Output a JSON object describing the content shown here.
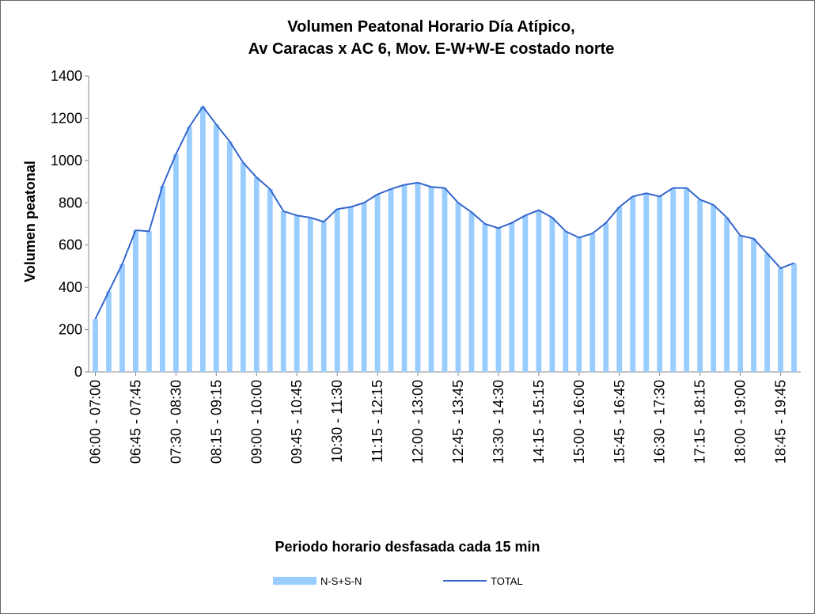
{
  "chart_data": {
    "type": "bar_line",
    "title": [
      "Volumen Peatonal Horario Día  Atípico,",
      "Av Caracas x AC 6, Mov. E-W+W-E costado norte"
    ],
    "ylabel": "Volumen peatonal",
    "xlabel": "Periodo horario desfasada cada 15 min",
    "categories": [
      "06:00 - 07:00",
      null,
      null,
      "06:45 - 07:45",
      null,
      null,
      "07:30 - 08:30",
      null,
      null,
      "08:15 - 09:15",
      null,
      null,
      "09:00 - 10:00",
      null,
      null,
      "09:45 - 10:45",
      null,
      null,
      "10:30 - 11:30",
      null,
      null,
      "11:15 - 12:15",
      null,
      null,
      "12:00 - 13:00",
      null,
      null,
      "12:45 - 13:45",
      null,
      null,
      "13:30 - 14:30",
      null,
      null,
      "14:15 - 15:15",
      null,
      null,
      "15:00 - 16:00",
      null,
      null,
      "15:45 - 16:45",
      null,
      null,
      "16:30 - 17:30",
      null,
      null,
      "17:15 - 18:15",
      null,
      null,
      "18:00 - 19:00",
      null,
      null,
      "18:45 - 19:45",
      null
    ],
    "series": [
      {
        "name": "N-S+S-N",
        "type": "bar",
        "color": "#99ccff",
        "values": [
          250,
          380,
          510,
          670,
          665,
          880,
          1030,
          1160,
          1255,
          1170,
          1090,
          990,
          920,
          865,
          760,
          740,
          730,
          710,
          770,
          780,
          800,
          840,
          865,
          885,
          895,
          875,
          870,
          800,
          755,
          700,
          680,
          705,
          740,
          765,
          730,
          665,
          635,
          655,
          705,
          780,
          830,
          845,
          830,
          870,
          870,
          815,
          790,
          730,
          645,
          630,
          560,
          490,
          515
        ]
      },
      {
        "name": "TOTAL",
        "type": "line",
        "color": "#3366cc",
        "values": [
          250,
          380,
          510,
          670,
          665,
          880,
          1030,
          1160,
          1255,
          1170,
          1090,
          990,
          920,
          865,
          760,
          740,
          730,
          710,
          770,
          780,
          800,
          840,
          865,
          885,
          895,
          875,
          870,
          800,
          755,
          700,
          680,
          705,
          740,
          765,
          730,
          665,
          635,
          655,
          705,
          780,
          830,
          845,
          830,
          870,
          870,
          815,
          790,
          730,
          645,
          630,
          560,
          490,
          515
        ]
      }
    ],
    "ylim": [
      0,
      1400
    ],
    "yticks": [
      0,
      200,
      400,
      600,
      800,
      1000,
      1200,
      1400
    ],
    "legend": "bottom"
  }
}
